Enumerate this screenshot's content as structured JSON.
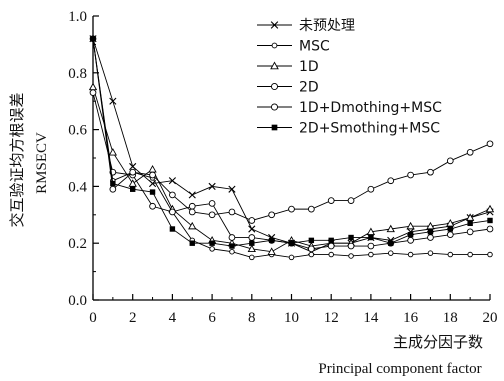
{
  "chart_data": {
    "type": "line",
    "xlabel_cn": "主成分因子数",
    "xlabel_en": "Principal component factor",
    "ylabel_cn": "交互验证均方根误差",
    "ylabel_en": "RMSECV",
    "xlim": [
      0,
      20
    ],
    "ylim": [
      0,
      1.0
    ],
    "xticks": [
      "0",
      "2",
      "4",
      "6",
      "8",
      "10",
      "12",
      "14",
      "16",
      "18",
      "20"
    ],
    "yticks": [
      "0.0",
      "0.2",
      "0.4",
      "0.6",
      "0.8",
      "1.0"
    ],
    "grid": false,
    "legend_position": "top-right",
    "x": [
      0,
      1,
      2,
      3,
      4,
      5,
      6,
      7,
      8,
      9,
      10,
      11,
      12,
      13,
      14,
      15,
      16,
      17,
      18,
      19,
      20
    ],
    "series": [
      {
        "name": "未预处理",
        "marker": "x",
        "values": [
          0.92,
          0.7,
          0.47,
          0.41,
          0.42,
          0.37,
          0.4,
          0.39,
          0.25,
          0.22,
          0.2,
          0.17,
          0.2,
          0.2,
          0.22,
          0.21,
          0.24,
          0.25,
          0.26,
          0.29,
          0.31
        ]
      },
      {
        "name": "MSC",
        "marker": "circle-small",
        "values": [
          0.92,
          0.42,
          0.45,
          0.43,
          0.31,
          0.21,
          0.18,
          0.17,
          0.15,
          0.16,
          0.15,
          0.16,
          0.16,
          0.155,
          0.16,
          0.165,
          0.16,
          0.165,
          0.16,
          0.16,
          0.16
        ]
      },
      {
        "name": "1D",
        "marker": "triangle",
        "values": [
          0.75,
          0.52,
          0.41,
          0.46,
          0.32,
          0.26,
          0.21,
          0.2,
          0.18,
          0.17,
          0.21,
          0.19,
          0.2,
          0.2,
          0.24,
          0.25,
          0.26,
          0.26,
          0.27,
          0.29,
          0.32
        ]
      },
      {
        "name": "2D",
        "marker": "circle",
        "values": [
          0.73,
          0.45,
          0.44,
          0.33,
          0.31,
          0.33,
          0.34,
          0.22,
          0.22,
          0.21,
          0.2,
          0.18,
          0.19,
          0.19,
          0.19,
          0.2,
          0.21,
          0.22,
          0.23,
          0.24,
          0.25
        ]
      },
      {
        "name": "1D+Dmothing+MSC",
        "marker": "circle",
        "values": [
          0.92,
          0.39,
          0.45,
          0.44,
          0.37,
          0.31,
          0.3,
          0.31,
          0.28,
          0.3,
          0.32,
          0.32,
          0.35,
          0.35,
          0.39,
          0.42,
          0.44,
          0.45,
          0.49,
          0.52,
          0.55
        ]
      },
      {
        "name": "2D+Smothing+MSC",
        "marker": "square",
        "values": [
          0.92,
          0.41,
          0.39,
          0.38,
          0.25,
          0.2,
          0.2,
          0.19,
          0.2,
          0.21,
          0.2,
          0.21,
          0.21,
          0.22,
          0.22,
          0.2,
          0.23,
          0.24,
          0.25,
          0.27,
          0.28
        ]
      }
    ]
  }
}
